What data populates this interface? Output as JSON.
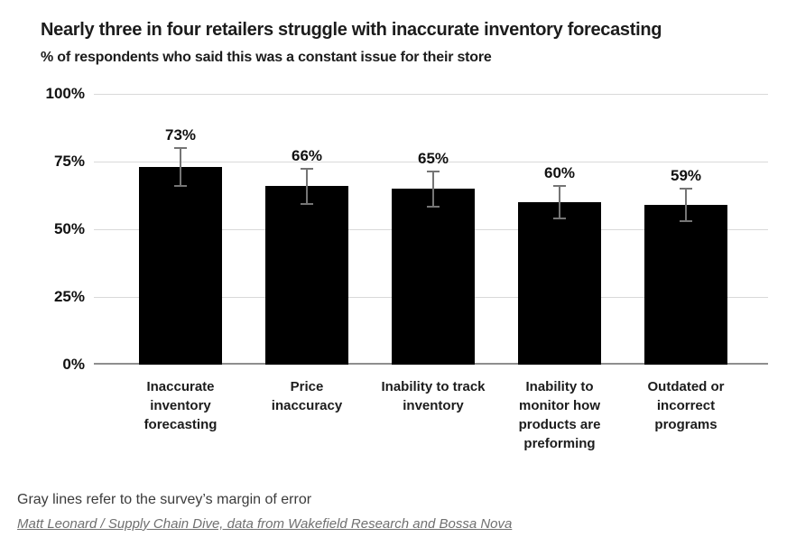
{
  "chart_data": {
    "type": "bar",
    "title": "Nearly three in four retailers struggle with inaccurate inventory forecasting",
    "subtitle": "% of respondents who said this was a constant issue for their store",
    "categories": [
      "Inaccurate inventory forecasting",
      "Price inaccuracy",
      "Inability to track inventory",
      "Inability to monitor how products are preforming",
      "Outdated or incorrect programs"
    ],
    "category_lines": [
      [
        "Inaccurate",
        "inventory",
        "forecasting"
      ],
      [
        "Price",
        "inaccuracy"
      ],
      [
        "Inability to track",
        "inventory"
      ],
      [
        "Inability to",
        "monitor how",
        "products are",
        "preforming"
      ],
      [
        "Outdated or",
        "incorrect",
        "programs"
      ]
    ],
    "values": [
      73,
      66,
      65,
      60,
      59
    ],
    "data_labels": [
      "73%",
      "66%",
      "65%",
      "60%",
      "59%"
    ],
    "margins_of_error": [
      7,
      6.5,
      6.5,
      6,
      6
    ],
    "xlabel": "",
    "ylabel": "",
    "ylim": [
      0,
      100
    ],
    "y_ticks": [
      {
        "label": "0%",
        "value": 0
      },
      {
        "label": "25%",
        "value": 25
      },
      {
        "label": "50%",
        "value": 50
      },
      {
        "label": "75%",
        "value": 75
      },
      {
        "label": "100%",
        "value": 100
      }
    ],
    "grid": true,
    "legend_position": "none",
    "colors": {
      "bar": "#000000",
      "error_bar": "#757575",
      "gridline": "#d9d9d9",
      "baseline": "#8e8e8e",
      "text": "#1c1c1c"
    }
  },
  "footer": {
    "note": "Gray lines refer to the survey’s margin of error",
    "source": "Matt Leonard / Supply Chain Dive, data from Wakefield Research and Bossa Nova"
  }
}
